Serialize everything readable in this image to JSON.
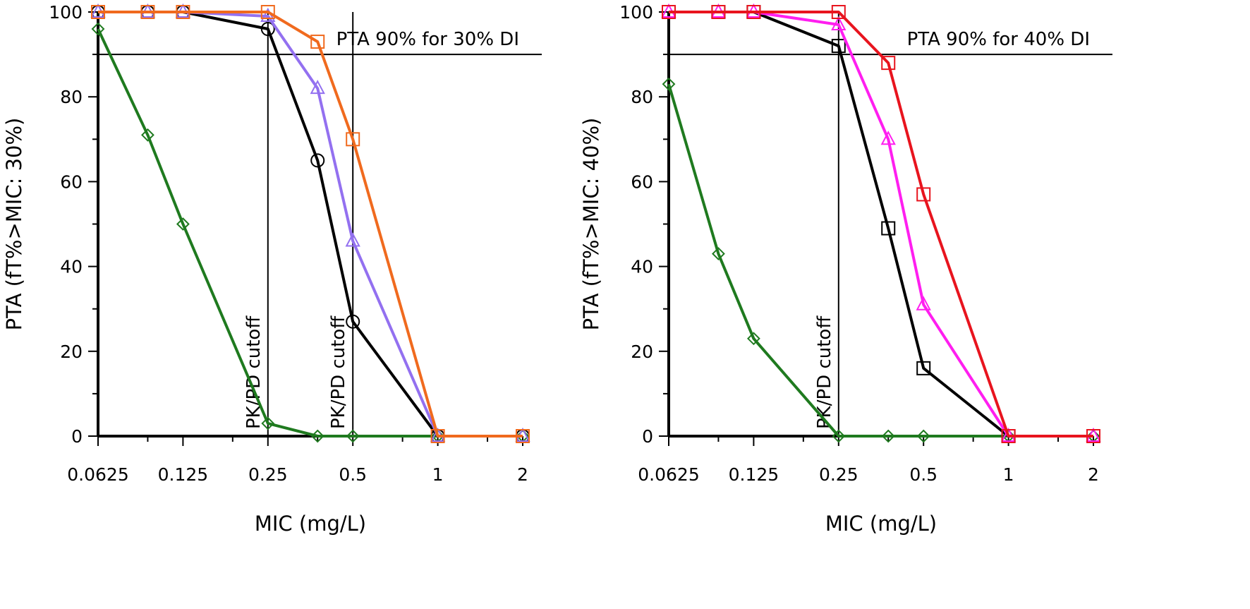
{
  "chart_data": [
    {
      "type": "line",
      "x_scale": "log2",
      "x_ticks": [
        0.0625,
        0.125,
        0.25,
        0.5,
        1,
        2
      ],
      "x_tick_labels": [
        "0.0625",
        "0.125",
        "0.25",
        "0.5",
        "1",
        "2"
      ],
      "xlabel": "MIC (mg/L)",
      "ylabel": "PTA (fT%>MIC: 30%)",
      "ylim": [
        0,
        100
      ],
      "y_ticks": [
        0,
        20,
        40,
        60,
        80,
        100
      ],
      "y_tick_labels": [
        "0",
        "20",
        "40",
        "60",
        "80",
        "100"
      ],
      "target_line": {
        "y": 90,
        "label": "PTA 90% for 30% DI"
      },
      "cutoffs": [
        {
          "x": 0.25,
          "label": "PK/PD cutoff"
        },
        {
          "x": 0.5,
          "label": "PK/PD cutoff"
        }
      ],
      "series": [
        {
          "name": "green",
          "color": "#1f7a1f",
          "marker": "diamond",
          "x": [
            0.0625,
            0.09375,
            0.125,
            0.25,
            0.375,
            0.5,
            1,
            2
          ],
          "values": [
            96,
            71,
            50,
            3,
            0,
            0,
            0,
            0
          ]
        },
        {
          "name": "black",
          "color": "#000000",
          "marker": "circle",
          "x": [
            0.0625,
            0.09375,
            0.125,
            0.25,
            0.375,
            0.5,
            1,
            2
          ],
          "values": [
            100,
            100,
            100,
            96,
            65,
            27,
            0,
            0
          ]
        },
        {
          "name": "purple",
          "color": "#9370f0",
          "marker": "triangle",
          "x": [
            0.0625,
            0.09375,
            0.125,
            0.25,
            0.375,
            0.5,
            1,
            2
          ],
          "values": [
            100,
            100,
            100,
            99,
            82,
            46,
            0,
            0
          ]
        },
        {
          "name": "orange",
          "color": "#f06a1e",
          "marker": "square",
          "x": [
            0.0625,
            0.09375,
            0.125,
            0.25,
            0.375,
            0.5,
            1,
            2
          ],
          "values": [
            100,
            100,
            100,
            100,
            93,
            70,
            0,
            0
          ]
        }
      ]
    },
    {
      "type": "line",
      "x_scale": "log2",
      "x_ticks": [
        0.0625,
        0.125,
        0.25,
        0.5,
        1,
        2
      ],
      "x_tick_labels": [
        "0.0625",
        "0.125",
        "0.25",
        "0.5",
        "1",
        "2"
      ],
      "xlabel": "MIC (mg/L)",
      "ylabel": "PTA (fT%>MIC: 40%)",
      "ylim": [
        0,
        100
      ],
      "y_ticks": [
        0,
        20,
        40,
        60,
        80,
        100
      ],
      "y_tick_labels": [
        "0",
        "20",
        "40",
        "60",
        "80",
        "100"
      ],
      "target_line": {
        "y": 90,
        "label": "PTA 90% for 40% DI"
      },
      "cutoffs": [
        {
          "x": 0.25,
          "label": "PK/PD cutoff"
        }
      ],
      "series": [
        {
          "name": "green",
          "color": "#1f7a1f",
          "marker": "diamond",
          "x": [
            0.0625,
            0.09375,
            0.125,
            0.25,
            0.375,
            0.5,
            1,
            2
          ],
          "values": [
            83,
            43,
            23,
            0,
            0,
            0,
            0,
            0
          ]
        },
        {
          "name": "black",
          "color": "#000000",
          "marker": "square",
          "x": [
            0.0625,
            0.09375,
            0.125,
            0.25,
            0.375,
            0.5,
            1,
            2
          ],
          "values": [
            100,
            100,
            100,
            92,
            49,
            16,
            0,
            0
          ]
        },
        {
          "name": "magenta",
          "color": "#ff1ef0",
          "marker": "triangle",
          "x": [
            0.0625,
            0.09375,
            0.125,
            0.25,
            0.375,
            0.5,
            1,
            2
          ],
          "values": [
            100,
            100,
            100,
            97,
            70,
            31,
            0,
            0
          ]
        },
        {
          "name": "red",
          "color": "#e8141e",
          "marker": "square",
          "x": [
            0.0625,
            0.09375,
            0.125,
            0.25,
            0.375,
            0.5,
            1,
            2
          ],
          "values": [
            100,
            100,
            100,
            100,
            88,
            57,
            0,
            0
          ]
        }
      ]
    }
  ]
}
